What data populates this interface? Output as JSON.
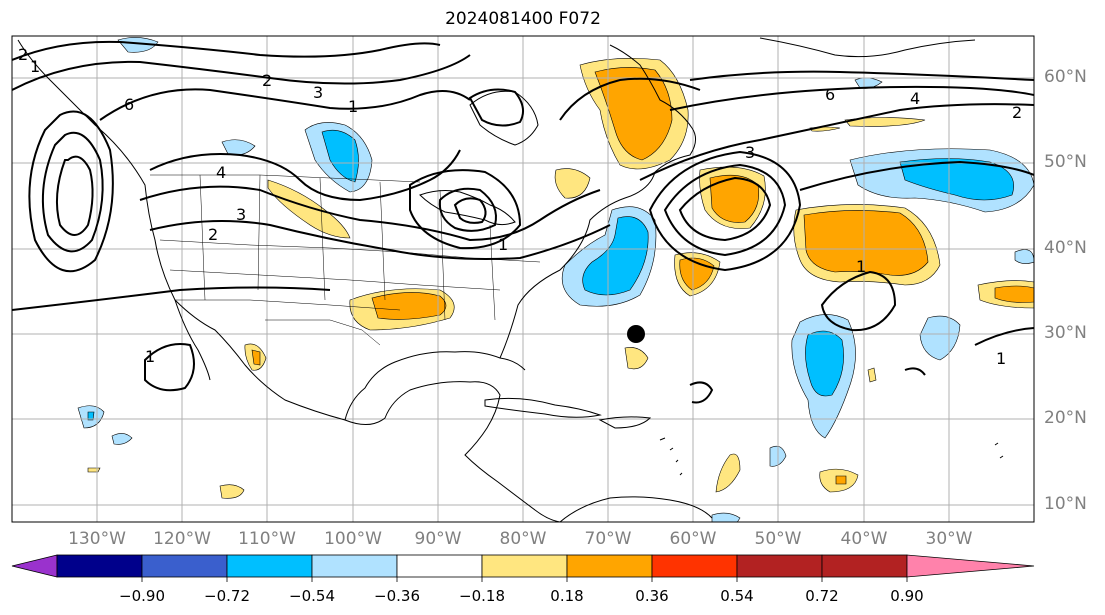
{
  "title": "2024081400 F072",
  "lat_labels": [
    "60°N",
    "50°N",
    "40°N",
    "30°N",
    "20°N",
    "10°N"
  ],
  "lon_labels": [
    "130°W",
    "120°W",
    "110°W",
    "100°W",
    "90°W",
    "80°W",
    "70°W",
    "60°W",
    "50°W",
    "40°W",
    "30°W"
  ],
  "contour_labels": [
    "1",
    "2",
    "3",
    "4",
    "6"
  ],
  "colorbar": {
    "tick_labels": [
      "−0.90",
      "−0.72",
      "−0.54",
      "−0.36",
      "−0.18",
      "0.18",
      "0.36",
      "0.54",
      "0.72",
      "0.90"
    ],
    "colors": [
      "#9a32cd",
      "#00008b",
      "#3a5fcd",
      "#00bfff",
      "#b0e2ff",
      "#ffffff",
      "#ffe680",
      "#ffa500",
      "#ff3300",
      "#b22222",
      "#ff82ab"
    ]
  },
  "marker": {
    "label": "storm position",
    "lat": 30,
    "lon": -66
  }
}
